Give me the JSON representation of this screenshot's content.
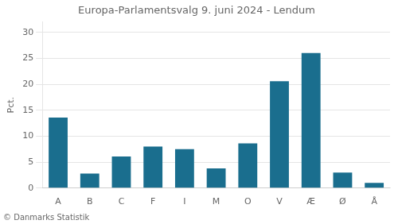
{
  "chart_data": {
    "type": "bar",
    "title": "Europa-Parlamentsvalg 9. juni 2024 - Lendum",
    "categories": [
      "A",
      "B",
      "C",
      "F",
      "I",
      "M",
      "O",
      "V",
      "Æ",
      "Ø",
      "Å"
    ],
    "values": [
      13.6,
      2.8,
      6.1,
      8.0,
      7.5,
      3.8,
      8.6,
      20.6,
      26.0,
      3.0,
      1.0
    ],
    "color": "#1a6e8e",
    "ylabel": "Pct.",
    "footer": "© Danmarks Statistik",
    "ylim": [
      0,
      32
    ],
    "yticks": [
      0,
      5,
      10,
      15,
      20,
      25,
      30
    ],
    "grid": true
  }
}
